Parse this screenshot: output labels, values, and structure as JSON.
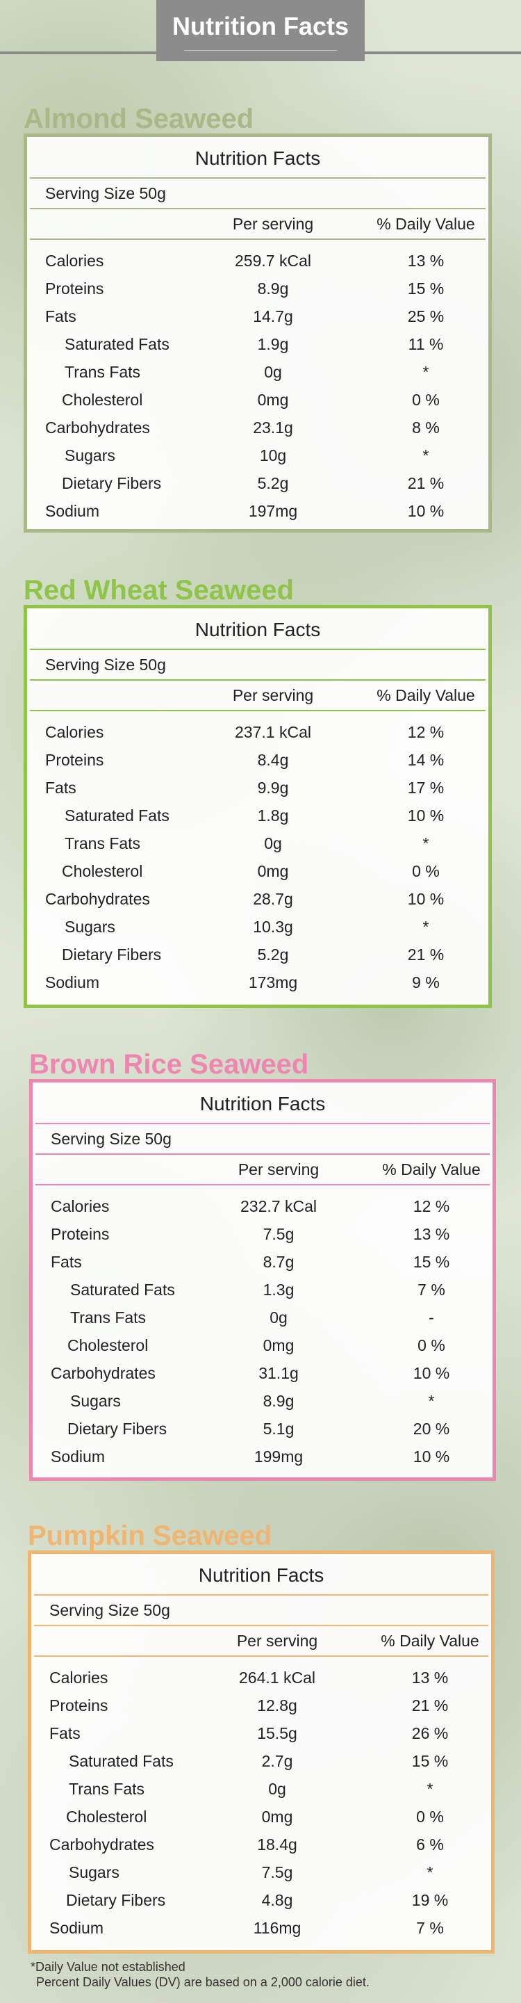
{
  "header": {
    "title": "Nutrition Facts"
  },
  "column_headers": {
    "per_serving": "Per serving",
    "daily_value": "% Daily Value"
  },
  "panel_title": "Nutrition Facts",
  "serving_size": "Serving Size 50g",
  "labels": [
    "Calories",
    "Proteins",
    "Fats",
    "Saturated Fats",
    "Trans Fats",
    "Cholesterol",
    "Carbohydrates",
    "Sugars",
    "Dietary Fibers",
    "Sodium"
  ],
  "products": [
    {
      "name": "Almond Seaweed",
      "color": "#a9b886",
      "rows": [
        [
          "259.7 kCal",
          "13 %"
        ],
        [
          "8.9g",
          "15 %"
        ],
        [
          "14.7g",
          "25 %"
        ],
        [
          "1.9g",
          "11 %"
        ],
        [
          "0g",
          "*"
        ],
        [
          "0mg",
          "0 %"
        ],
        [
          "23.1g",
          "8 %"
        ],
        [
          "10g",
          "*"
        ],
        [
          "5.2g",
          "21 %"
        ],
        [
          "197mg",
          "10 %"
        ]
      ]
    },
    {
      "name": "Red Wheat Seaweed",
      "color": "#8ec548",
      "rows": [
        [
          "237.1 kCal",
          "12 %"
        ],
        [
          "8.4g",
          "14 %"
        ],
        [
          "9.9g",
          "17 %"
        ],
        [
          "1.8g",
          "10 %"
        ],
        [
          "0g",
          "*"
        ],
        [
          "0mg",
          "0 %"
        ],
        [
          "28.7g",
          "10 %"
        ],
        [
          "10.3g",
          "*"
        ],
        [
          "5.2g",
          "21 %"
        ],
        [
          "173mg",
          "9 %"
        ]
      ]
    },
    {
      "name": "Brown Rice Seaweed",
      "color": "#ee86b1",
      "rows": [
        [
          "232.7 kCal",
          "12 %"
        ],
        [
          "7.5g",
          "13 %"
        ],
        [
          "8.7g",
          "15 %"
        ],
        [
          "1.3g",
          "7 %"
        ],
        [
          "0g",
          "-"
        ],
        [
          "0mg",
          "0 %"
        ],
        [
          "31.1g",
          "10 %"
        ],
        [
          "8.9g",
          "*"
        ],
        [
          "5.1g",
          "20 %"
        ],
        [
          "199mg",
          "10 %"
        ]
      ]
    },
    {
      "name": "Pumpkin Seaweed",
      "color": "#f1b572",
      "rows": [
        [
          "264.1 kCal",
          "13 %"
        ],
        [
          "12.8g",
          "21 %"
        ],
        [
          "15.5g",
          "26 %"
        ],
        [
          "2.7g",
          "15 %"
        ],
        [
          "0g",
          "*"
        ],
        [
          "0mg",
          "0 %"
        ],
        [
          "18.4g",
          "6 %"
        ],
        [
          "7.5g",
          "*"
        ],
        [
          "4.8g",
          "19 %"
        ],
        [
          "116mg",
          "7 %"
        ]
      ]
    }
  ],
  "footnote": {
    "line1": "*Daily Value not established",
    "line2": "Percent Daily Values (DV) are based on a 2,000 calorie diet."
  }
}
